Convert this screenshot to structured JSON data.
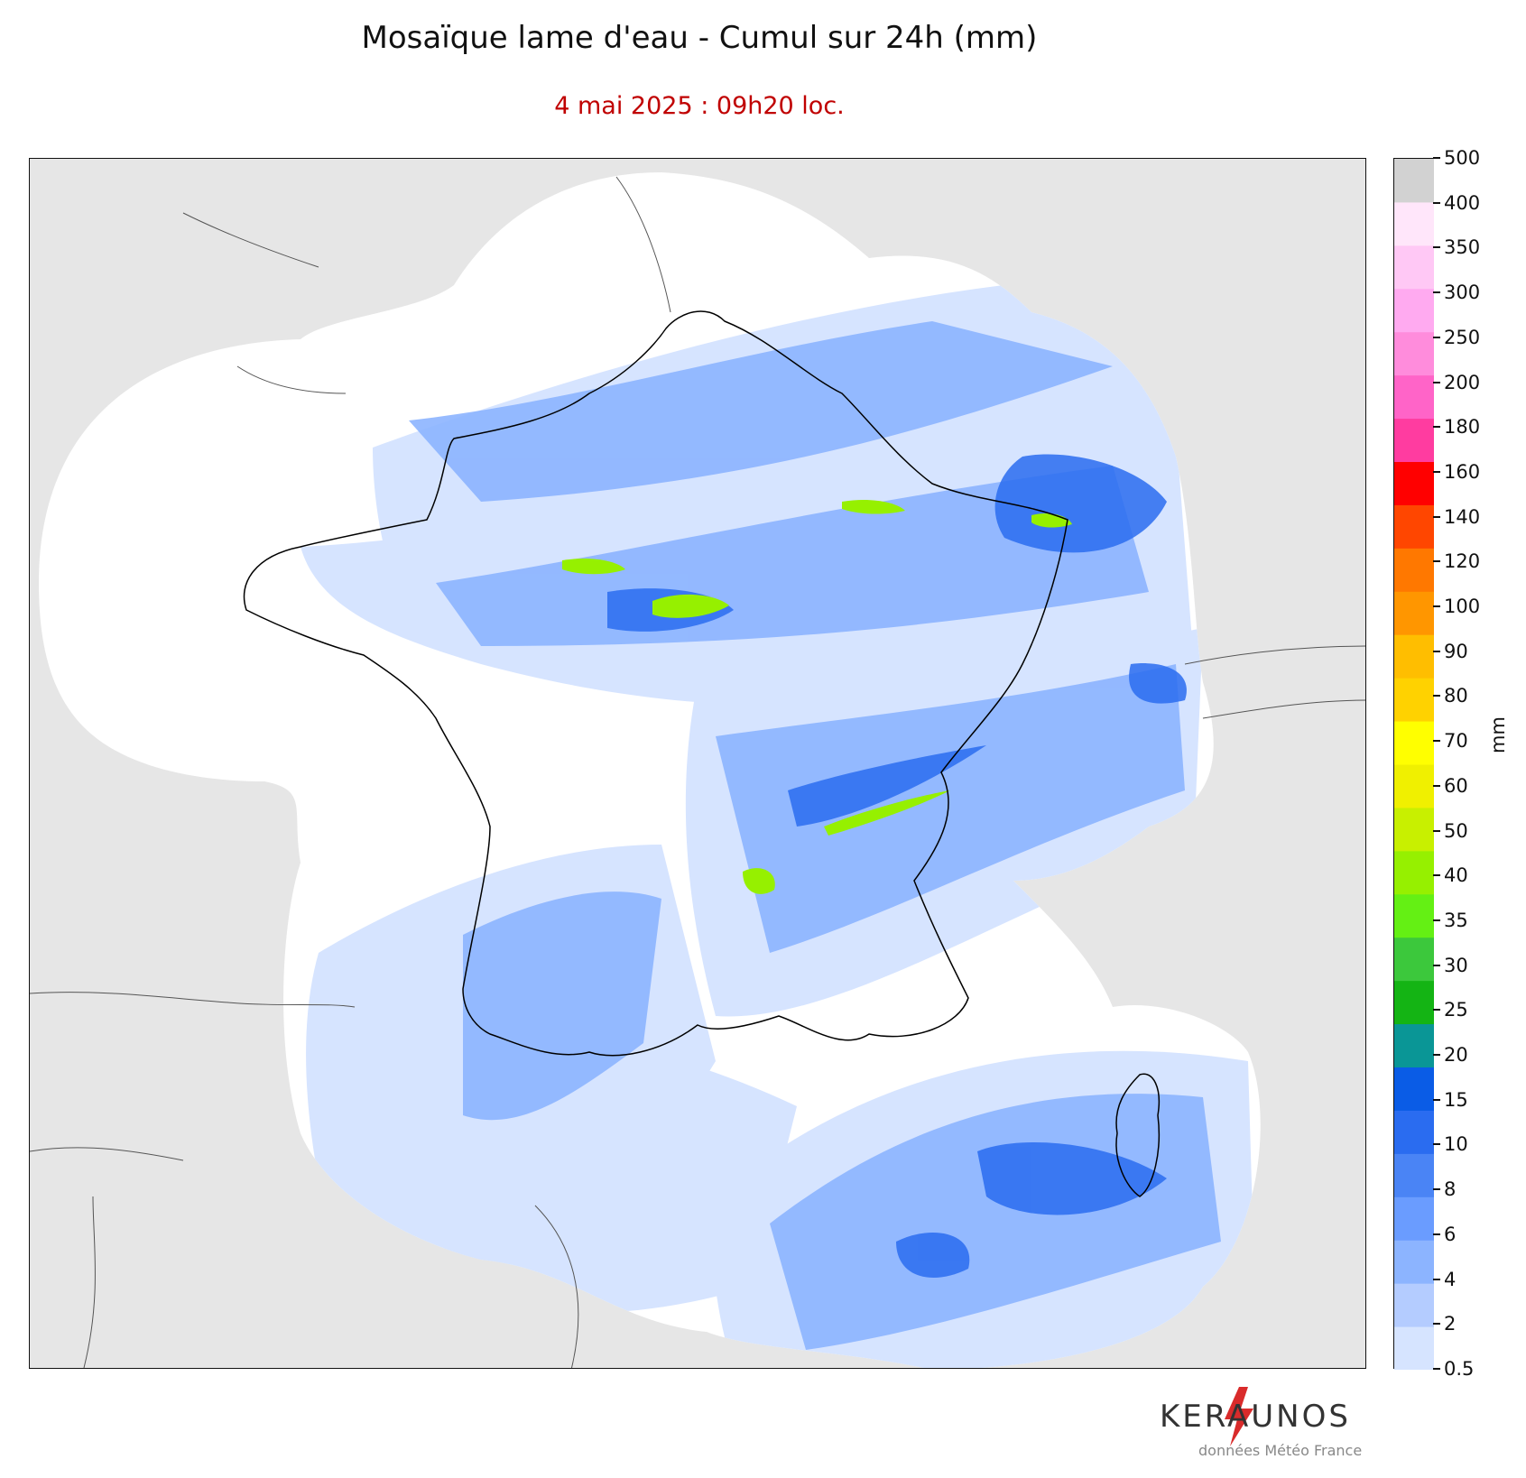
{
  "title": "Mosaïque lame d'eau - Cumul sur 24h (mm)",
  "subtitle": "4 mai 2025 : 09h20 loc.",
  "colorbar": {
    "unit": "mm",
    "levels": [
      0.5,
      2,
      4,
      6,
      8,
      10,
      15,
      20,
      25,
      30,
      35,
      40,
      50,
      60,
      70,
      80,
      90,
      100,
      120,
      140,
      160,
      180,
      200,
      250,
      300,
      350,
      400,
      500
    ],
    "tick_labels": [
      "0.5",
      "2",
      "4",
      "6",
      "8",
      "10",
      "15",
      "20",
      "25",
      "30",
      "35",
      "40",
      "50",
      "60",
      "70",
      "80",
      "90",
      "100",
      "120",
      "140",
      "160",
      "180",
      "200",
      "250",
      "300",
      "350",
      "400",
      "500"
    ],
    "colors": [
      "#d6e4ff",
      "#b4ccff",
      "#8cb4ff",
      "#6a9cff",
      "#4a84f5",
      "#2a6cf0",
      "#0a5ce6",
      "#0a9696",
      "#14b414",
      "#3cc83c",
      "#64f014",
      "#96f000",
      "#c8f000",
      "#f0f000",
      "#ffff00",
      "#ffd200",
      "#ffbe00",
      "#ff9600",
      "#ff7800",
      "#ff4600",
      "#ff0000",
      "#ff3ca0",
      "#ff64c8",
      "#ff8cdc",
      "#ffaaf0",
      "#ffc8f5",
      "#ffe6fa",
      "#d2d2d2"
    ]
  },
  "map": {
    "region": "France",
    "background_color": "#e6e6e6",
    "radar_coverage_color": "#ffffff"
  },
  "brand": {
    "name": "KERAUNOS",
    "credit": "données Météo France",
    "icon": "lightning-bolt-icon"
  }
}
